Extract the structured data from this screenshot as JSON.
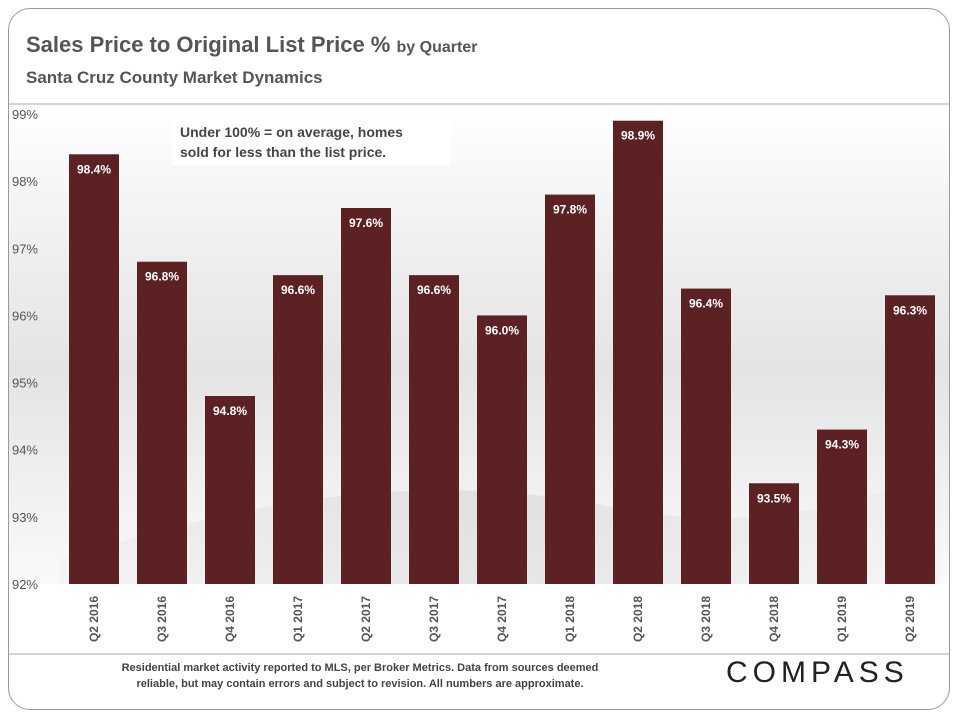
{
  "header": {
    "title_main": "Sales Price to Original List Price %",
    "title_suffix": "by Quarter",
    "subtitle": "Santa Cruz County Market Dynamics"
  },
  "annotation": {
    "line1": "Under 100% =  on average, homes",
    "line2": "sold for less than the list price."
  },
  "footer": {
    "line1": "Residential market activity reported to MLS, per Broker Metrics. Data from sources deemed",
    "line2": "reliable, but may contain errors and subject to revision. All numbers are approximate.",
    "logo_text": "COMPASS"
  },
  "colors": {
    "bar": "#5c2223",
    "bar_label": "#ffffff",
    "axis_text": "#555555"
  },
  "chart_data": {
    "type": "bar",
    "categories": [
      "Q2 2016",
      "Q3 2016",
      "Q4 2016",
      "Q1 2017",
      "Q2 2017",
      "Q3 2017",
      "Q4 2017",
      "Q1 2018",
      "Q2 2018",
      "Q3 2018",
      "Q4 2018",
      "Q1 2019",
      "Q2 2019"
    ],
    "values": [
      98.4,
      96.8,
      94.8,
      96.6,
      97.6,
      96.6,
      96.0,
      97.8,
      98.9,
      96.4,
      93.5,
      94.3,
      96.3
    ],
    "data_labels": [
      "98.4%",
      "96.8%",
      "94.8%",
      "96.6%",
      "97.6%",
      "96.6%",
      "96.0%",
      "97.8%",
      "98.9%",
      "96.4%",
      "93.5%",
      "94.3%",
      "96.3%"
    ],
    "ylim": [
      92,
      99
    ],
    "yticks": [
      92,
      93,
      94,
      95,
      96,
      97,
      98,
      99
    ],
    "ytick_labels": [
      "92%",
      "93%",
      "94%",
      "95%",
      "96%",
      "97%",
      "98%",
      "99%"
    ],
    "xlabel": "",
    "ylabel": "",
    "grid": false,
    "legend": "none"
  }
}
